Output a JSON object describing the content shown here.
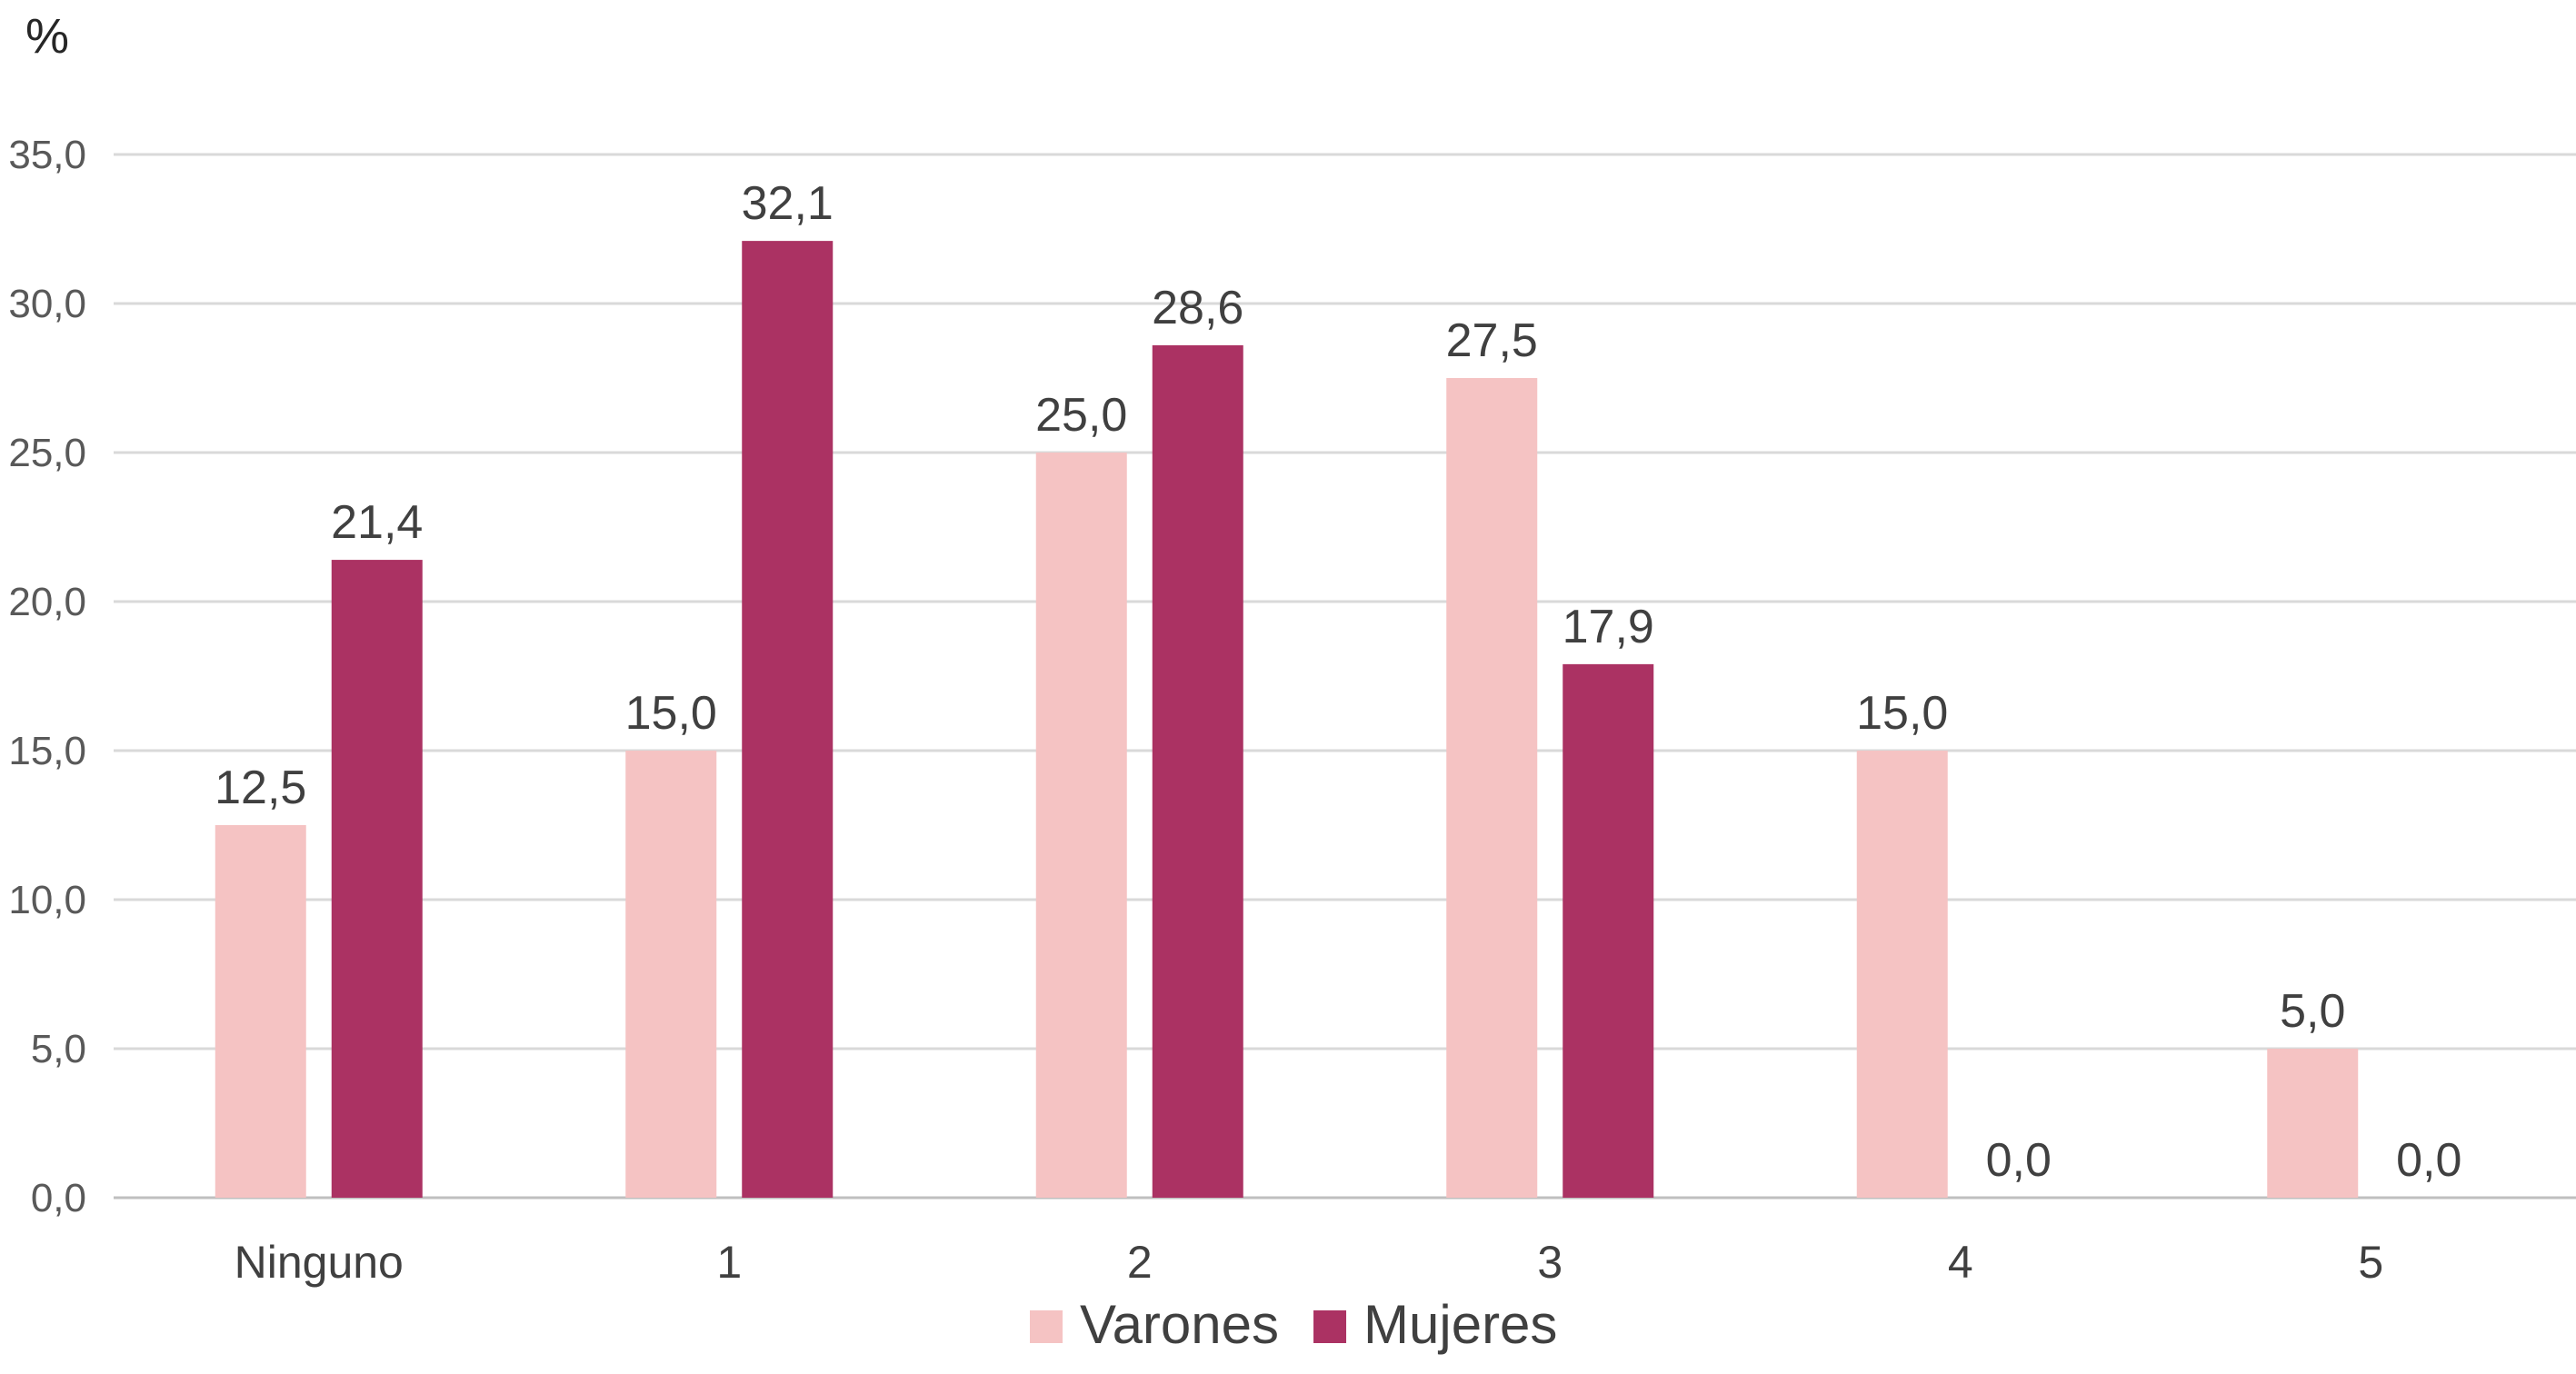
{
  "chart_data": {
    "type": "bar",
    "ylabel": "%",
    "categories": [
      "Ninguno",
      "1",
      "2",
      "3",
      "4",
      "5"
    ],
    "series": [
      {
        "name": "Varones",
        "color": "#F5C3C3",
        "values": [
          12.5,
          15.0,
          25.0,
          27.5,
          15.0,
          5.0
        ],
        "labels": [
          "12,5",
          "15,0",
          "25,0",
          "27,5",
          "15,0",
          "5,0"
        ]
      },
      {
        "name": "Mujeres",
        "color": "#AB3263",
        "values": [
          21.4,
          32.1,
          28.6,
          17.9,
          0.0,
          0.0
        ],
        "labels": [
          "21,4",
          "32,1",
          "28,6",
          "17,9",
          "0,0",
          "0,0"
        ]
      }
    ],
    "ylim": [
      0,
      35
    ],
    "yticks": [
      0,
      5,
      10,
      15,
      20,
      25,
      30,
      35
    ],
    "ytick_labels": [
      "0,0",
      "5,0",
      "10,0",
      "15,0",
      "20,0",
      "25,0",
      "30,0",
      "35,0"
    ],
    "grid": true,
    "legend": "bottom"
  }
}
